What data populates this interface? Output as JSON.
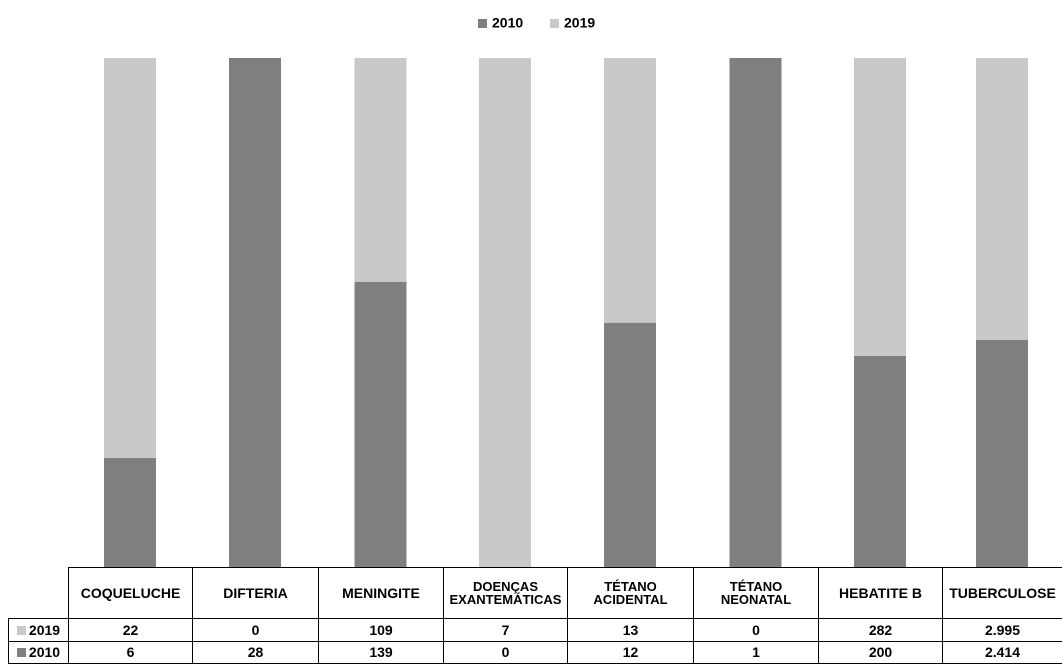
{
  "chart_data": {
    "type": "bar",
    "stacked": "percent",
    "categories": [
      "COQUELUCHE",
      "DIFTERIA",
      "MENINGITE",
      "DOENÇAS\nEXANTEMÁTICAS",
      "TÉTANO\nACIDENTAL",
      "TÉTANO\nNEONATAL",
      "HEBATITE B",
      "TUBERCULOSE"
    ],
    "series": [
      {
        "name": "2010",
        "color": "#7f7f7f",
        "values": [
          6,
          28,
          139,
          0,
          12,
          1,
          200,
          2414
        ],
        "value_labels": [
          "6",
          "28",
          "139",
          "0",
          "12",
          "1",
          "200",
          "2.414"
        ]
      },
      {
        "name": "2019",
        "color": "#c9c9c9",
        "values": [
          22,
          0,
          109,
          7,
          13,
          0,
          282,
          2995
        ],
        "value_labels": [
          "22",
          "0",
          "109",
          "7",
          "13",
          "0",
          "282",
          "2.995"
        ]
      }
    ],
    "legend": "top",
    "data_table": true
  }
}
